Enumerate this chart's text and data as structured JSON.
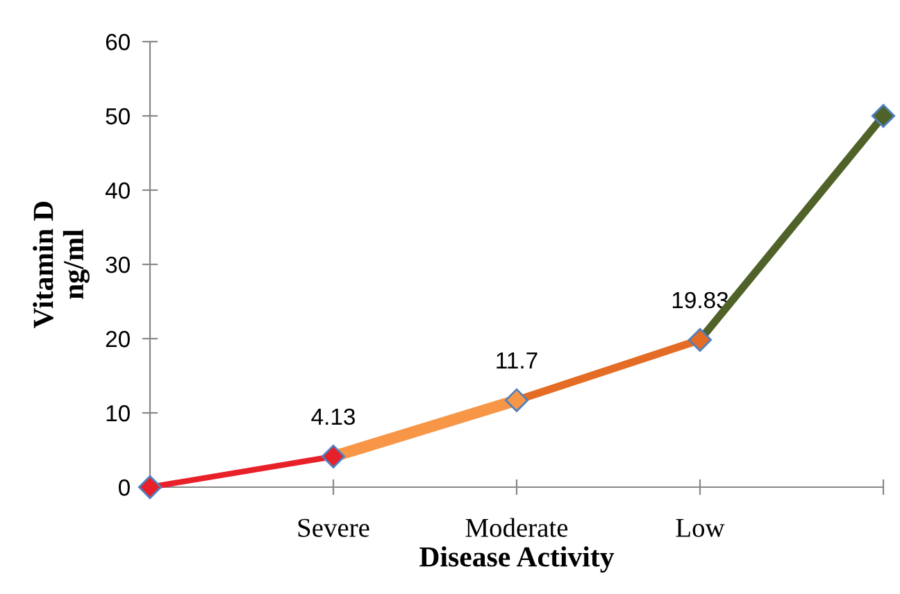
{
  "chart_data": {
    "type": "line",
    "xlabel": "Disease Activity",
    "ylabel": "Vitamin D\nng/ml",
    "categories": [
      null,
      "Severe",
      "Moderate",
      "Low",
      null
    ],
    "series": [
      {
        "color": "#e8202a",
        "values": [
          0,
          4.13,
          null,
          null,
          null
        ],
        "value_labels": [
          null,
          "4.13",
          null,
          null,
          null
        ]
      },
      {
        "color": "#f79646",
        "values": [
          null,
          4.13,
          11.7,
          null,
          null
        ],
        "value_labels": [
          null,
          null,
          "11.7",
          null,
          null
        ]
      },
      {
        "color": "#e46c24",
        "values": [
          null,
          null,
          11.7,
          19.83,
          null
        ],
        "value_labels": [
          null,
          null,
          null,
          "19.83",
          null
        ]
      },
      {
        "color": "#4f6228",
        "values": [
          null,
          null,
          null,
          19.83,
          50
        ]
      }
    ],
    "ylim": [
      0,
      60
    ],
    "yticks": [
      0,
      10,
      20,
      30,
      40,
      50,
      60
    ],
    "grid": false,
    "legend": false,
    "marker": "diamond",
    "line_style": "solid"
  }
}
